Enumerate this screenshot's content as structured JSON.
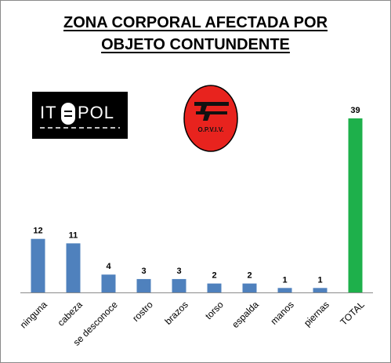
{
  "title": {
    "line1": "ZONA CORPORAL AFECTADA POR",
    "line2": "OBJETO CONTUNDENTE"
  },
  "logos": {
    "itepol_text": "IT POL",
    "opviv_text": "O.P.V.I.V."
  },
  "colors": {
    "bar": "#4f81bd",
    "total_bar": "#1eb04b",
    "axis": "#8a8a8a"
  },
  "chart_data": {
    "type": "bar",
    "title": "ZONA CORPORAL AFECTADA POR OBJETO CONTUNDENTE",
    "categories": [
      "ninguna",
      "cabeza",
      "se desconoce",
      "rostro",
      "brazos",
      "torso",
      "espalda",
      "manos",
      "piernas",
      "TOTAL"
    ],
    "values": [
      12,
      11,
      4,
      3,
      3,
      2,
      2,
      1,
      1,
      39
    ],
    "data_labels": true,
    "grid": false,
    "legend": "none",
    "ylim": [
      0,
      40
    ]
  }
}
